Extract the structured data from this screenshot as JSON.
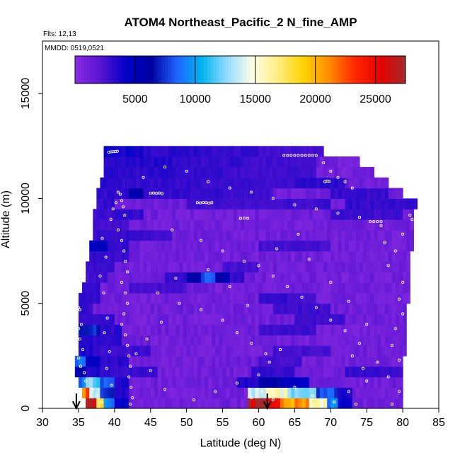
{
  "chart_data": {
    "type": "heatmap",
    "title": "ATOM4 Northeast_Pacific_2 N_fine_AMP",
    "flights_text": "Flts: 12,13",
    "dates_text": "MMDD: 0519,0521",
    "xlabel": "Latitude (deg N)",
    "ylabel": "Altitude (m)",
    "xlim": [
      30,
      85
    ],
    "ylim": [
      0,
      17500
    ],
    "x_ticks": [
      30,
      35,
      40,
      45,
      50,
      55,
      60,
      65,
      70,
      75,
      80,
      85
    ],
    "y_ticks": [
      0,
      5000,
      10000,
      15000
    ],
    "grid": false,
    "colorbar": {
      "range": [
        0,
        27500
      ],
      "ticks": [
        5000,
        10000,
        15000,
        20000,
        25000
      ],
      "placement": "top",
      "colors": [
        "#8a2be2",
        "#5a14d2",
        "#0000c8",
        "#0000a0",
        "#1e64ff",
        "#00b4f0",
        "#96dcff",
        "#ffffe6",
        "#ffee80",
        "#ffd200",
        "#ff8c00",
        "#ff2800",
        "#e60000",
        "#a52a2a"
      ]
    },
    "arrows": [
      34.7,
      61.2
    ],
    "layer_height": 500,
    "column_width": 0.5,
    "envelope": [
      [
        0,
        36.0,
        80.0
      ],
      [
        500,
        35.5,
        80.0
      ],
      [
        1000,
        35.0,
        80.0
      ],
      [
        1500,
        34.5,
        80.0
      ],
      [
        2000,
        34.5,
        80.0
      ],
      [
        2500,
        35.0,
        80.5
      ],
      [
        3000,
        35.0,
        80.5
      ],
      [
        3500,
        35.0,
        80.5
      ],
      [
        4000,
        35.0,
        80.5
      ],
      [
        4500,
        35.0,
        80.5
      ],
      [
        5000,
        35.0,
        81.0
      ],
      [
        5500,
        35.5,
        81.0
      ],
      [
        6000,
        36.0,
        81.0
      ],
      [
        6500,
        36.0,
        81.0
      ],
      [
        7000,
        36.5,
        81.0
      ],
      [
        7500,
        36.5,
        81.5
      ],
      [
        8000,
        37.0,
        81.5
      ],
      [
        8500,
        37.0,
        81.5
      ],
      [
        9000,
        37.0,
        81.5
      ],
      [
        9500,
        37.5,
        82.0
      ],
      [
        10000,
        37.5,
        80.0
      ],
      [
        10500,
        38.0,
        78.0
      ],
      [
        11000,
        38.5,
        76.0
      ],
      [
        11500,
        38.5,
        74.0
      ],
      [
        12000,
        38.5,
        69.0
      ]
    ],
    "background_value": 1000,
    "anomalies": [
      {
        "alt": 0,
        "ranges": [
          [
            36.0,
            37.5,
            25000
          ],
          [
            37.5,
            38.5,
            17000
          ],
          [
            38.5,
            40.0,
            9000
          ],
          [
            40.0,
            42.0,
            4000
          ],
          [
            58.5,
            61.0,
            27000
          ],
          [
            61.0,
            63.5,
            24000
          ],
          [
            63.5,
            67.0,
            20000
          ],
          [
            67.0,
            69.5,
            16000
          ],
          [
            69.5,
            71.0,
            9000
          ],
          [
            71.0,
            73.0,
            4000
          ]
        ]
      },
      {
        "alt": 500,
        "ranges": [
          [
            35.5,
            36.5,
            21000
          ],
          [
            36.5,
            38.0,
            14000
          ],
          [
            38.0,
            40.0,
            7000
          ],
          [
            40.0,
            42.0,
            3500
          ],
          [
            58.5,
            61.0,
            13000
          ],
          [
            61.0,
            64.0,
            15500
          ],
          [
            64.0,
            68.0,
            13000
          ],
          [
            68.0,
            71.0,
            8000
          ],
          [
            71.0,
            73.0,
            3500
          ]
        ]
      },
      {
        "alt": 1000,
        "ranges": [
          [
            35.0,
            36.0,
            9000
          ],
          [
            36.0,
            38.0,
            12000
          ],
          [
            38.0,
            40.0,
            8000
          ],
          [
            40.0,
            42.0,
            3500
          ],
          [
            57.0,
            60.0,
            3500
          ],
          [
            60.0,
            63.0,
            6000
          ],
          [
            63.0,
            67.0,
            4500
          ]
        ]
      },
      {
        "alt": 1500,
        "ranges": [
          [
            34.5,
            36.0,
            6000
          ],
          [
            36.0,
            38.0,
            3500
          ],
          [
            38.0,
            40.0,
            3000
          ],
          [
            40.0,
            46.0,
            3000
          ],
          [
            59.0,
            65.0,
            3000
          ],
          [
            72.0,
            80.0,
            3000
          ]
        ]
      },
      {
        "alt": 2000,
        "ranges": [
          [
            34.5,
            36.0,
            9000
          ],
          [
            36.0,
            38.0,
            4500
          ],
          [
            38.0,
            42.0,
            3200
          ],
          [
            60.0,
            66.0,
            2600
          ]
        ]
      },
      {
        "alt": 2500,
        "ranges": [
          [
            35.0,
            37.0,
            3500
          ],
          [
            37.0,
            45.0,
            2800
          ],
          [
            62.0,
            70.0,
            2600
          ]
        ]
      },
      {
        "alt": 3000,
        "ranges": [
          [
            35.0,
            37.0,
            3200
          ],
          [
            37.0,
            41.0,
            3200
          ]
        ]
      },
      {
        "alt": 3500,
        "ranges": [
          [
            35.0,
            38.0,
            7000
          ],
          [
            38.0,
            41.0,
            3200
          ],
          [
            60.0,
            68.0,
            2800
          ]
        ]
      },
      {
        "alt": 4000,
        "ranges": [
          [
            35.0,
            40.0,
            3000
          ],
          [
            65.0,
            72.0,
            2800
          ]
        ]
      },
      {
        "alt": 4500,
        "ranges": [
          [
            35.0,
            37.0,
            3000
          ],
          [
            62.0,
            70.0,
            2800
          ]
        ]
      },
      {
        "alt": 5000,
        "ranges": [
          [
            35.0,
            38.0,
            3000
          ],
          [
            60.0,
            64.0,
            3000
          ],
          [
            64.0,
            68.0,
            2600
          ]
        ]
      },
      {
        "alt": 5500,
        "ranges": [
          [
            35.5,
            38.0,
            3000
          ],
          [
            42.0,
            50.0,
            2600
          ]
        ]
      },
      {
        "alt": 6000,
        "ranges": [
          [
            36.0,
            39.0,
            2800
          ],
          [
            47.0,
            50.0,
            3000
          ],
          [
            50.0,
            52.0,
            6000
          ],
          [
            52.0,
            54.0,
            8000
          ],
          [
            54.0,
            56.0,
            5500
          ],
          [
            56.0,
            58.0,
            3000
          ]
        ]
      },
      {
        "alt": 6500,
        "ranges": [
          [
            36.0,
            40.0,
            2800
          ],
          [
            55.0,
            60.0,
            2600
          ]
        ]
      },
      {
        "alt": 7000,
        "ranges": [
          [
            36.5,
            39.0,
            3000
          ],
          [
            39.0,
            42.0,
            2800
          ]
        ]
      },
      {
        "alt": 7500,
        "ranges": [
          [
            36.5,
            39.0,
            4500
          ],
          [
            39.0,
            42.0,
            3000
          ],
          [
            60.0,
            70.0,
            2600
          ]
        ]
      },
      {
        "alt": 8000,
        "ranges": [
          [
            37.0,
            42.0,
            3000
          ],
          [
            42.0,
            48.0,
            2800
          ]
        ]
      },
      {
        "alt": 8500,
        "ranges": [
          [
            37.0,
            42.0,
            2600
          ]
        ]
      },
      {
        "alt": 9000,
        "ranges": [
          [
            37.0,
            40.0,
            2800
          ],
          [
            40.0,
            44.0,
            3000
          ],
          [
            70.0,
            80.0,
            2800
          ]
        ]
      },
      {
        "alt": 9500,
        "ranges": [
          [
            37.5,
            40.0,
            3000
          ],
          [
            50.0,
            70.0,
            2800
          ],
          [
            72.0,
            82.0,
            3000
          ]
        ]
      },
      {
        "alt": 10000,
        "ranges": [
          [
            37.5,
            42.0,
            3000
          ],
          [
            42.0,
            44.0,
            5500
          ],
          [
            44.0,
            55.0,
            3000
          ],
          [
            55.0,
            62.0,
            2800
          ],
          [
            70.0,
            78.0,
            3000
          ]
        ]
      },
      {
        "alt": 10500,
        "ranges": [
          [
            38.0,
            42.0,
            3200
          ],
          [
            42.0,
            52.0,
            3000
          ],
          [
            52.0,
            65.0,
            2800
          ],
          [
            65.0,
            72.0,
            3200
          ]
        ]
      },
      {
        "alt": 11000,
        "ranges": [
          [
            38.5,
            48.0,
            3200
          ],
          [
            48.0,
            55.0,
            3000
          ],
          [
            55.0,
            68.0,
            2800
          ]
        ]
      },
      {
        "alt": 11500,
        "ranges": [
          [
            38.5,
            48.0,
            3500
          ],
          [
            48.0,
            58.0,
            3000
          ],
          [
            58.0,
            68.0,
            2800
          ]
        ]
      },
      {
        "alt": 12000,
        "ranges": [
          [
            38.5,
            44.0,
            3800
          ],
          [
            44.0,
            52.0,
            3200
          ],
          [
            52.0,
            60.0,
            3000
          ],
          [
            60.0,
            69.0,
            2600
          ]
        ]
      }
    ],
    "observation_points": [
      [
        39.2,
        12200
      ],
      [
        39.5,
        12220
      ],
      [
        39.8,
        12230
      ],
      [
        40.1,
        12240
      ],
      [
        40.4,
        12250
      ],
      [
        63.5,
        12050
      ],
      [
        64.0,
        12050
      ],
      [
        64.5,
        12050
      ],
      [
        65.0,
        12050
      ],
      [
        65.5,
        12050
      ],
      [
        66.0,
        12050
      ],
      [
        66.5,
        12050
      ],
      [
        67.0,
        12050
      ],
      [
        67.5,
        12050
      ],
      [
        68.0,
        12050
      ],
      [
        69.0,
        11700
      ],
      [
        70.0,
        11300
      ],
      [
        71.0,
        11000
      ],
      [
        72.0,
        10800
      ],
      [
        73.0,
        10500
      ],
      [
        69.2,
        10800
      ],
      [
        69.5,
        10820
      ],
      [
        69.8,
        10810
      ],
      [
        45.0,
        10250
      ],
      [
        45.4,
        10260
      ],
      [
        45.8,
        10240
      ],
      [
        46.2,
        10260
      ],
      [
        46.6,
        10230
      ],
      [
        51.5,
        9800
      ],
      [
        51.9,
        9790
      ],
      [
        52.3,
        9810
      ],
      [
        52.7,
        9800
      ],
      [
        53.1,
        9780
      ],
      [
        53.5,
        9800
      ],
      [
        57.5,
        9050
      ],
      [
        58.0,
        9060
      ],
      [
        58.5,
        9050
      ],
      [
        75.5,
        8900
      ],
      [
        76.0,
        8900
      ],
      [
        76.5,
        8900
      ],
      [
        77.0,
        8900
      ],
      [
        81.0,
        9200
      ],
      [
        81.3,
        9000
      ],
      [
        40.5,
        10300
      ],
      [
        40.8,
        10200
      ],
      [
        41.0,
        9900
      ],
      [
        41.2,
        9600
      ],
      [
        41.4,
        9200
      ],
      [
        40.2,
        9800
      ],
      [
        39.8,
        9500
      ],
      [
        39.5,
        9000
      ],
      [
        40.5,
        8500
      ],
      [
        41.0,
        8000
      ],
      [
        41.3,
        7500
      ],
      [
        41.5,
        7000
      ],
      [
        41.8,
        6500
      ],
      [
        41.0,
        6000
      ],
      [
        41.5,
        5500
      ],
      [
        41.8,
        5000
      ],
      [
        41.3,
        4500
      ],
      [
        41.0,
        4000
      ],
      [
        41.5,
        3500
      ],
      [
        41.8,
        3000
      ],
      [
        42.0,
        2500
      ],
      [
        42.2,
        2000
      ],
      [
        42.0,
        1500
      ],
      [
        42.3,
        1000
      ],
      [
        42.5,
        500
      ],
      [
        42.2,
        200
      ],
      [
        35.0,
        4800
      ],
      [
        35.2,
        4700
      ],
      [
        35.4,
        4000
      ],
      [
        35.0,
        3800
      ],
      [
        35.2,
        3300
      ],
      [
        35.6,
        2800
      ],
      [
        35.0,
        2400
      ],
      [
        35.3,
        2000
      ],
      [
        35.8,
        1700
      ],
      [
        36.0,
        1300
      ],
      [
        37.0,
        900
      ],
      [
        37.5,
        600
      ],
      [
        38.2,
        300
      ],
      [
        44.0,
        11000
      ],
      [
        47.0,
        11500
      ],
      [
        50.0,
        11300
      ],
      [
        53.0,
        10800
      ],
      [
        56.0,
        10500
      ],
      [
        59.0,
        10300
      ],
      [
        62.0,
        10000
      ],
      [
        65.0,
        9700
      ],
      [
        68.0,
        9500
      ],
      [
        71.0,
        9300
      ],
      [
        74.0,
        9100
      ],
      [
        77.0,
        8700
      ],
      [
        80.0,
        8300
      ],
      [
        79.0,
        7500
      ],
      [
        78.0,
        6800
      ],
      [
        80.0,
        6000
      ],
      [
        79.5,
        5200
      ],
      [
        80.0,
        4500
      ],
      [
        79.0,
        3800
      ],
      [
        78.5,
        3000
      ],
      [
        79.5,
        2300
      ],
      [
        78.0,
        1500
      ],
      [
        79.5,
        800
      ],
      [
        78.5,
        200
      ],
      [
        48.0,
        8500
      ],
      [
        52.0,
        8000
      ],
      [
        55.0,
        7500
      ],
      [
        58.0,
        7000
      ],
      [
        60.0,
        6800
      ],
      [
        62.0,
        6300
      ],
      [
        64.0,
        5800
      ],
      [
        66.0,
        5300
      ],
      [
        68.0,
        4800
      ],
      [
        70.0,
        4200
      ],
      [
        72.0,
        3700
      ],
      [
        74.0,
        3100
      ],
      [
        73.0,
        2500
      ],
      [
        74.5,
        1900
      ],
      [
        75.0,
        1300
      ],
      [
        46.0,
        5500
      ],
      [
        49.0,
        5000
      ],
      [
        52.0,
        4700
      ],
      [
        55.0,
        4200
      ],
      [
        57.0,
        3600
      ],
      [
        59.0,
        3100
      ],
      [
        61.0,
        2600
      ],
      [
        61.5,
        2200
      ],
      [
        63.0,
        2800
      ],
      [
        60.0,
        1600
      ],
      [
        57.0,
        1200
      ],
      [
        54.0,
        800
      ],
      [
        51.0,
        400
      ],
      [
        47.0,
        900
      ],
      [
        45.0,
        1800
      ],
      [
        43.0,
        2600
      ],
      [
        44.5,
        3300
      ],
      [
        46.5,
        4100
      ],
      [
        48.5,
        6200
      ],
      [
        53.0,
        6600
      ],
      [
        56.0,
        5800
      ],
      [
        58.5,
        4900
      ],
      [
        62.5,
        7600
      ],
      [
        65.5,
        8300
      ],
      [
        67.0,
        7100
      ],
      [
        70.0,
        6000
      ],
      [
        72.5,
        5100
      ],
      [
        75.0,
        4000
      ],
      [
        76.5,
        2200
      ],
      [
        77.5,
        7900
      ],
      [
        38.5,
        5500
      ],
      [
        38.0,
        6300
      ],
      [
        38.8,
        7200
      ],
      [
        38.3,
        8100
      ],
      [
        39.0,
        4300
      ],
      [
        38.6,
        3600
      ],
      [
        39.3,
        2700
      ],
      [
        38.9,
        1900
      ],
      [
        39.6,
        1100
      ],
      [
        59.0,
        500
      ],
      [
        60.5,
        800
      ],
      [
        62.0,
        400
      ],
      [
        65.0,
        1000
      ],
      [
        67.5,
        600
      ],
      [
        70.5,
        300
      ],
      [
        72.5,
        800
      ],
      [
        73.5,
        200
      ]
    ]
  }
}
